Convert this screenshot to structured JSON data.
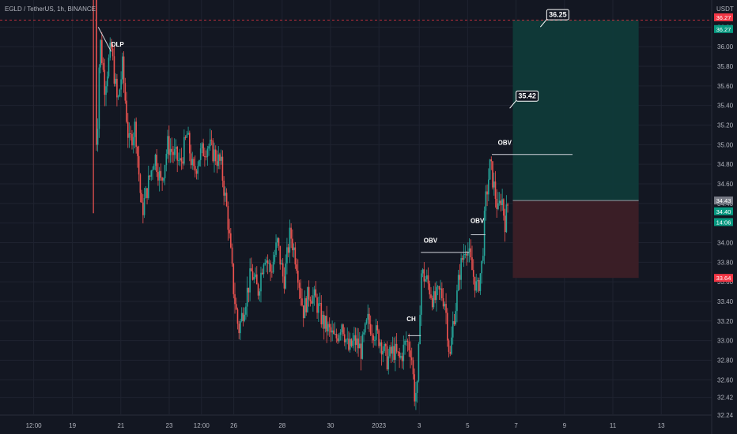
{
  "header": {
    "symbol_title": "EGLD / TetherUS, 1h, BINANCE",
    "currency": "USDT"
  },
  "chart_data": {
    "type": "candlestick",
    "title": "EGLD / TetherUS, 1h, BINANCE",
    "ylabel": "USDT",
    "ylim": [
      32.3,
      36.38
    ],
    "xlim": [
      0,
      31
    ],
    "grid": true,
    "y_ticks": [
      "32.24",
      "32.42",
      "32.60",
      "32.80",
      "33.00",
      "33.20",
      "33.40",
      "33.60",
      "33.80",
      "34.00",
      "34.20",
      "34.40",
      "34.60",
      "34.80",
      "35.00",
      "35.20",
      "35.40",
      "35.60",
      "35.80",
      "36.00",
      "36.20"
    ],
    "y_tick_values": [
      32.24,
      32.42,
      32.6,
      32.8,
      33.0,
      33.2,
      33.4,
      33.6,
      33.8,
      34.0,
      34.2,
      34.4,
      34.6,
      34.8,
      35.0,
      35.2,
      35.4,
      35.6,
      35.8,
      36.0,
      36.2
    ],
    "x_ticks": [
      {
        "label": "12:00",
        "t": 1.6
      },
      {
        "label": "19",
        "t": 4.0
      },
      {
        "label": "21",
        "t": 7.0
      },
      {
        "label": "23",
        "t": 10.0
      },
      {
        "label": "12:00",
        "t": 12.0
      },
      {
        "label": "26",
        "t": 14.0
      },
      {
        "label": "28",
        "t": 17.0
      },
      {
        "label": "30",
        "t": 20.0
      },
      {
        "label": "2023",
        "t": 23.0
      },
      {
        "label": "3",
        "t": 25.5
      },
      {
        "label": "5",
        "t": 28.5
      },
      {
        "label": "7",
        "t": 31.5
      },
      {
        "label": "9",
        "t": 34.5
      },
      {
        "label": "11",
        "t": 37.5
      },
      {
        "label": "13",
        "t": 40.5
      }
    ],
    "price_path": [
      [
        5.4,
        36.5
      ],
      [
        5.5,
        34.8
      ],
      [
        5.7,
        36.1
      ],
      [
        6.0,
        35.6
      ],
      [
        6.4,
        36.0
      ],
      [
        6.8,
        35.4
      ],
      [
        7.1,
        35.8
      ],
      [
        7.5,
        35.0
      ],
      [
        7.9,
        35.2
      ],
      [
        8.3,
        34.3
      ],
      [
        8.7,
        34.6
      ],
      [
        9.1,
        34.9
      ],
      [
        9.5,
        34.6
      ],
      [
        9.9,
        35.0
      ],
      [
        10.3,
        34.9
      ],
      [
        10.7,
        34.8
      ],
      [
        11.1,
        35.1
      ],
      [
        11.5,
        34.7
      ],
      [
        11.9,
        34.9
      ],
      [
        12.4,
        35.0
      ],
      [
        12.8,
        34.9
      ],
      [
        13.2,
        34.8
      ],
      [
        13.6,
        34.3
      ],
      [
        14.0,
        33.5
      ],
      [
        14.3,
        33.1
      ],
      [
        14.7,
        33.4
      ],
      [
        15.1,
        33.7
      ],
      [
        15.5,
        33.5
      ],
      [
        15.9,
        33.9
      ],
      [
        16.3,
        33.7
      ],
      [
        16.7,
        34.0
      ],
      [
        17.1,
        33.6
      ],
      [
        17.5,
        34.1
      ],
      [
        17.9,
        33.8
      ],
      [
        18.3,
        33.3
      ],
      [
        18.7,
        33.5
      ],
      [
        19.1,
        33.4
      ],
      [
        19.5,
        33.2
      ],
      [
        19.9,
        33.1
      ],
      [
        20.3,
        33.0
      ],
      [
        20.7,
        33.2
      ],
      [
        21.1,
        32.9
      ],
      [
        21.5,
        33.0
      ],
      [
        21.9,
        32.9
      ],
      [
        22.3,
        33.2
      ],
      [
        22.7,
        33.1
      ],
      [
        23.1,
        33.0
      ],
      [
        23.5,
        32.8
      ],
      [
        23.9,
        32.9
      ],
      [
        24.3,
        32.8
      ],
      [
        24.7,
        33.0
      ],
      [
        25.0,
        32.9
      ],
      [
        25.2,
        32.45
      ],
      [
        25.4,
        32.5
      ],
      [
        25.6,
        33.7
      ],
      [
        26.0,
        33.6
      ],
      [
        26.4,
        33.4
      ],
      [
        26.8,
        33.5
      ],
      [
        27.1,
        33.4
      ],
      [
        27.4,
        32.8
      ],
      [
        27.6,
        33.2
      ],
      [
        27.8,
        33.4
      ],
      [
        28.0,
        33.7
      ],
      [
        28.4,
        34.0
      ],
      [
        28.8,
        33.7
      ],
      [
        29.1,
        33.5
      ],
      [
        29.4,
        33.8
      ],
      [
        29.6,
        34.4
      ],
      [
        29.9,
        34.8
      ],
      [
        30.2,
        34.5
      ],
      [
        30.4,
        34.3
      ],
      [
        30.6,
        34.5
      ],
      [
        30.8,
        34.2
      ],
      [
        31.0,
        34.4
      ]
    ],
    "series": [
      {
        "name": "",
        "type": "range",
        "upper": 36.27,
        "lower": 33.64
      }
    ],
    "annotations": [
      {
        "label": "DLP",
        "t": 6.8,
        "y": 36.0
      },
      {
        "label": "CH",
        "t": 25.0,
        "y": 33.2
      },
      {
        "label": "OBV",
        "t": 26.2,
        "y": 34.0
      },
      {
        "label": "OBV",
        "t": 29.1,
        "y": 34.2
      },
      {
        "label": "OBV",
        "t": 30.8,
        "y": 35.0
      }
    ],
    "levels": {
      "obv_line": {
        "y": 34.9,
        "t_start": 30.0,
        "t_end": 35.0
      },
      "obv2_line": {
        "y": 34.08,
        "t_start": 28.7,
        "t_end": 29.6
      },
      "obv1_line": {
        "y": 33.9,
        "t_start": 25.6,
        "t_end": 28.6
      },
      "ch_line": {
        "y": 33.05,
        "t_start": 24.8,
        "t_end": 25.6
      },
      "resistance_line": {
        "y": 36.27
      }
    },
    "position": {
      "type": "long",
      "entry": 34.43,
      "target": 36.27,
      "stop": 33.64,
      "t_start": 31.3,
      "t_end": 39.1
    },
    "callouts": [
      {
        "label": "36.25",
        "y": 36.25,
        "t": 33.4
      },
      {
        "label": "35.42",
        "y": 35.42,
        "t": 31.5
      }
    ],
    "price_tags": [
      {
        "label": "36.27",
        "y": 36.3,
        "color": "#f23645"
      },
      {
        "label": "36.27",
        "y": 36.18,
        "color": "#089981"
      },
      {
        "label": "34.43",
        "y": 34.43,
        "color": "#787b86"
      },
      {
        "label": "34.40",
        "y": 34.32,
        "color": "#089981"
      },
      {
        "label": "14:06",
        "y": 34.21,
        "color": "#089981"
      },
      {
        "label": "33.64",
        "y": 33.64,
        "color": "#f23645"
      }
    ],
    "colors": {
      "background": "#131722",
      "up": "#26a69a",
      "down": "#ef5350",
      "grid": "#1f2330",
      "target_zone": "#0f3a39",
      "stop_zone": "#3c1f27",
      "resistance": "#f23645"
    }
  }
}
